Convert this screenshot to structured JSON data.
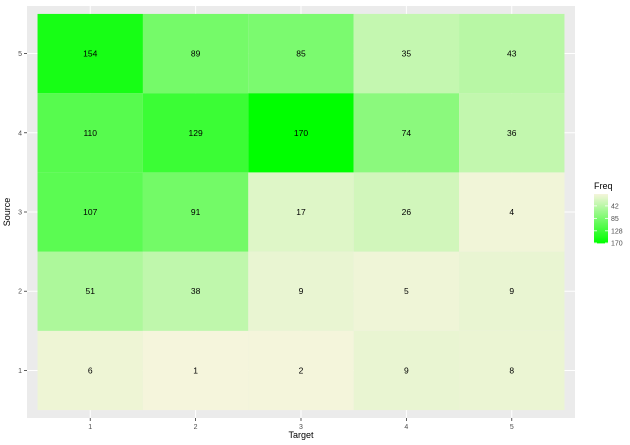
{
  "chart_data": {
    "type": "heatmap",
    "xlabel": "Target",
    "ylabel": "Source",
    "x_categories": [
      "1",
      "2",
      "3",
      "4",
      "5"
    ],
    "y_categories": [
      "1",
      "2",
      "3",
      "4",
      "5"
    ],
    "values": [
      [
        6,
        1,
        2,
        9,
        8
      ],
      [
        51,
        38,
        9,
        5,
        9
      ],
      [
        107,
        91,
        17,
        26,
        4
      ],
      [
        110,
        129,
        170,
        74,
        36
      ],
      [
        154,
        89,
        85,
        35,
        43
      ]
    ],
    "legend": {
      "title": "Freq",
      "breaks": [
        "42",
        "85",
        "128",
        "170"
      ],
      "break_values": [
        42,
        85,
        128,
        170
      ],
      "range": [
        1,
        170
      ],
      "low_color": "#f5f5dc",
      "high_color": "#00ff00",
      "placement": "right"
    },
    "colors": {
      "panel_background": "#ebebeb",
      "grid_line": "#ffffff"
    }
  }
}
